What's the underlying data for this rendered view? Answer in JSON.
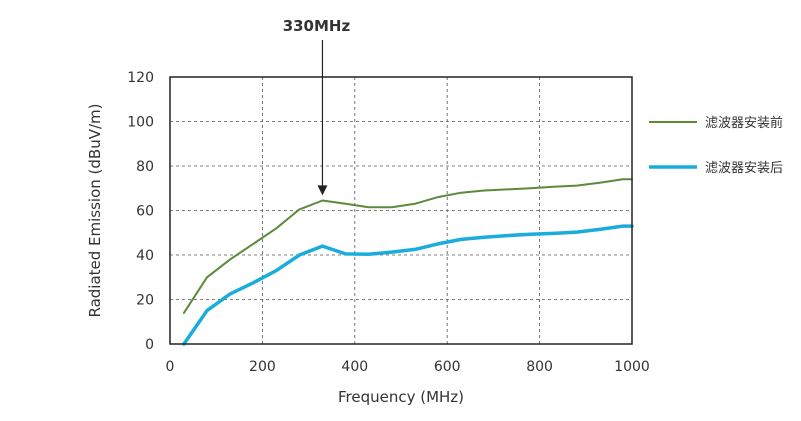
{
  "chart_data": {
    "type": "line",
    "xlabel": "Frequency (MHz)",
    "ylabel": "Radiated Emission (dBuV/m)",
    "xlim": [
      0,
      1000
    ],
    "ylim": [
      0,
      120
    ],
    "xticks": [
      0,
      200,
      400,
      600,
      800,
      1000
    ],
    "yticks": [
      0,
      20,
      40,
      60,
      80,
      100,
      120
    ],
    "grid": true,
    "legend_position": "right",
    "annotation": {
      "label": "330MHz",
      "x": 330,
      "y": 65
    },
    "series": [
      {
        "name": "滤波器安装前",
        "color": "#5a8a3a",
        "x": [
          30,
          80,
          130,
          180,
          230,
          280,
          330,
          380,
          430,
          480,
          530,
          580,
          630,
          680,
          730,
          780,
          830,
          880,
          930,
          980,
          1000
        ],
        "y": [
          14,
          30,
          38,
          45,
          52,
          60.5,
          64.5,
          63,
          61.5,
          61.5,
          63,
          66,
          68,
          69,
          69.5,
          70,
          70.7,
          71.2,
          72.5,
          74,
          74
        ]
      },
      {
        "name": "滤波器安装后",
        "color": "#1aaddc",
        "x": [
          30,
          80,
          130,
          180,
          230,
          280,
          330,
          380,
          430,
          480,
          530,
          580,
          630,
          680,
          730,
          780,
          830,
          880,
          930,
          980,
          1000
        ],
        "y": [
          0,
          15,
          22.5,
          27.5,
          33,
          40,
          44,
          40.5,
          40.3,
          41.3,
          42.5,
          45,
          47,
          48,
          48.7,
          49.3,
          49.7,
          50.3,
          51.5,
          53,
          53
        ]
      }
    ]
  }
}
